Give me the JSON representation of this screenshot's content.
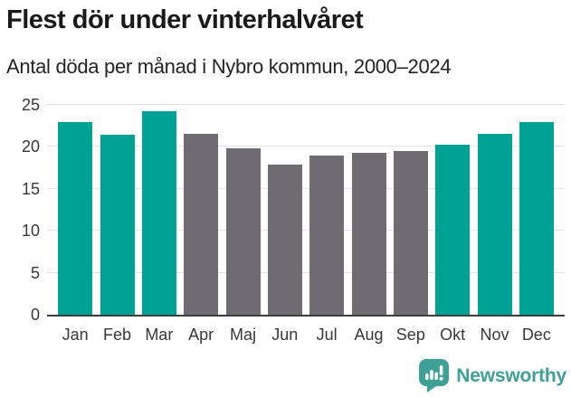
{
  "header": {
    "title": "Flest dör under vinterhalvåret",
    "subtitle": "Antal döda per månad i Nybro kommun, 2000–2024"
  },
  "chart_data": {
    "type": "bar",
    "title": "Flest dör under vinterhalvåret",
    "subtitle": "Antal döda per månad i Nybro kommun, 2000–2024",
    "categories": [
      "Jan",
      "Feb",
      "Mar",
      "Apr",
      "Maj",
      "Jun",
      "Jul",
      "Aug",
      "Sep",
      "Okt",
      "Nov",
      "Dec"
    ],
    "values": [
      23.0,
      21.4,
      24.2,
      21.6,
      19.8,
      17.9,
      19.0,
      19.3,
      19.5,
      20.3,
      21.6,
      23.0
    ],
    "highlighted": [
      true,
      true,
      true,
      false,
      false,
      false,
      false,
      false,
      false,
      true,
      true,
      true
    ],
    "highlight_color": "#00a296",
    "base_color": "#6e6c72",
    "xlabel": "",
    "ylabel": "",
    "ylim": [
      0,
      25
    ],
    "yticks": [
      0,
      5,
      10,
      15,
      20,
      25
    ],
    "grid": "horizontal",
    "grid_color": "#e4e4e4",
    "axis_line_color": "#3d3d3d",
    "tick_text_color": "#383838",
    "legend_position": "none"
  },
  "footer": {
    "brand": "Newsworthy",
    "brand_color": "#3fa098",
    "icon": "newsworthy-chart-bubble-icon"
  }
}
